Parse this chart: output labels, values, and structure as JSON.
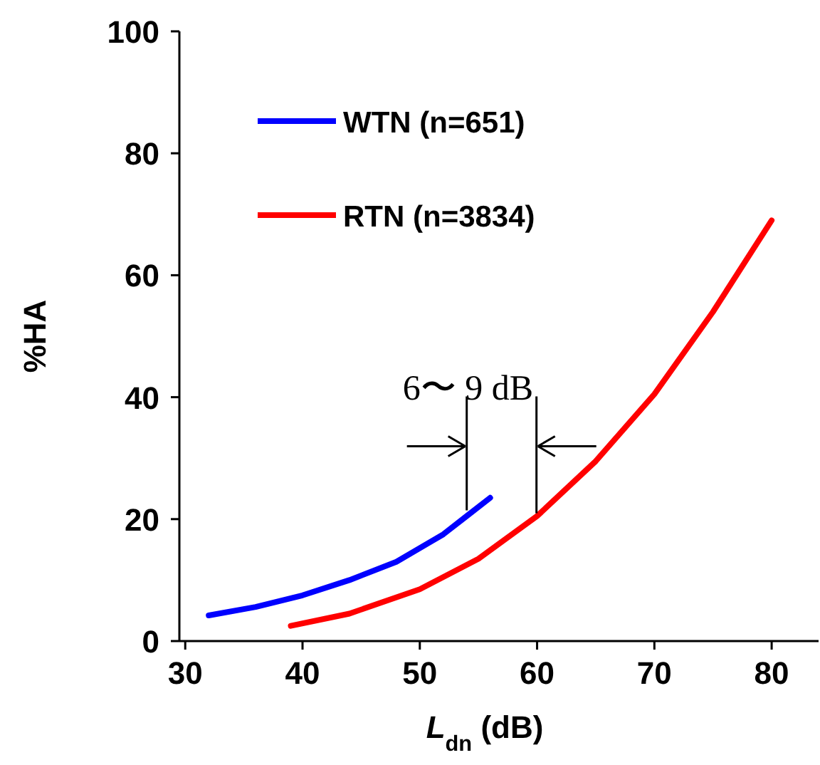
{
  "chart_data": {
    "type": "line",
    "xlabel": "L$_{dn}$ (dB)",
    "ylabel": "%HA",
    "xlim": [
      29.5,
      84
    ],
    "ylim": [
      0,
      100
    ],
    "xticks": [
      30,
      40,
      50,
      60,
      70,
      80
    ],
    "yticks": [
      0,
      20,
      40,
      60,
      80,
      100
    ],
    "grid": false,
    "legend": "top left",
    "line_style": "solid",
    "series": [
      {
        "name": "WTN (n=651)",
        "color": "#0000ff",
        "x": [
          32,
          36,
          40,
          44,
          48,
          52,
          54,
          56
        ],
        "values": [
          4.2,
          5.6,
          7.5,
          10,
          13,
          17.5,
          20.5,
          23.5
        ]
      },
      {
        "name": "RTN (n=3834)",
        "color": "#ff0000",
        "x": [
          39,
          44,
          50,
          55,
          60,
          65,
          70,
          75,
          80
        ],
        "values": [
          2.5,
          4.5,
          8.5,
          13.5,
          20.5,
          29.5,
          40.5,
          54,
          69
        ]
      }
    ],
    "annotations": [
      {
        "text": "6〜 9 dB",
        "x": 54,
        "y": 20.5
      }
    ]
  }
}
